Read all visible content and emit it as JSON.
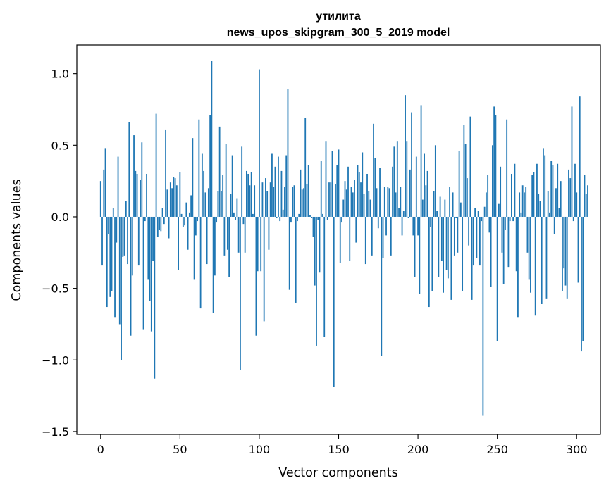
{
  "chart_data": {
    "type": "bar",
    "title_line1": "утилита",
    "title_line2": "news_upos_skipgram_300_5_2019 model",
    "xlabel": "Vector components",
    "ylabel": "Components values",
    "xlim": [
      -15,
      315
    ],
    "ylim": [
      -1.52,
      1.2
    ],
    "xticks": [
      0,
      50,
      100,
      150,
      200,
      250,
      300
    ],
    "xtick_labels": [
      "0",
      "50",
      "100",
      "150",
      "200",
      "250",
      "300"
    ],
    "yticks": [
      -1.5,
      -1.0,
      -0.5,
      0.0,
      0.5,
      1.0
    ],
    "ytick_labels": [
      "−1.5",
      "−1.0",
      "−0.5",
      "0.0",
      "0.5",
      "1.0"
    ],
    "bar_color": "#1f77b4",
    "x_start": 0,
    "values": [
      0.25,
      -0.34,
      0.33,
      0.48,
      -0.63,
      -0.12,
      -0.56,
      -0.52,
      0.06,
      -0.7,
      -0.18,
      0.42,
      -0.75,
      -1.0,
      -0.28,
      -0.27,
      0.11,
      -0.33,
      0.66,
      -0.83,
      -0.41,
      0.57,
      0.32,
      0.3,
      -0.34,
      0.26,
      0.52,
      -0.79,
      -0.03,
      0.3,
      -0.44,
      -0.59,
      -0.8,
      -0.31,
      -1.13,
      0.72,
      -0.14,
      -0.09,
      -0.1,
      0.06,
      -0.05,
      0.61,
      0.19,
      -0.15,
      0.24,
      0.2,
      0.28,
      0.27,
      0.22,
      -0.37,
      0.31,
      0.02,
      -0.07,
      -0.06,
      0.1,
      -0.23,
      0.03,
      0.15,
      0.55,
      -0.44,
      -0.13,
      -0.03,
      0.68,
      -0.64,
      0.44,
      0.32,
      0.17,
      -0.33,
      0.2,
      0.71,
      1.09,
      -0.67,
      -0.41,
      -0.04,
      0.18,
      0.63,
      0.18,
      0.29,
      -0.27,
      0.51,
      -0.23,
      -0.42,
      0.16,
      0.43,
      0.03,
      -0.02,
      0.13,
      -0.25,
      -1.07,
      0.49,
      -0.05,
      -0.25,
      0.32,
      0.3,
      0.22,
      0.31,
      0.02,
      0.22,
      -0.83,
      -0.38,
      1.03,
      -0.38,
      0.24,
      -0.73,
      0.27,
      0.18,
      -0.23,
      0.24,
      0.44,
      0.21,
      0.35,
      -0.01,
      0.42,
      -0.03,
      0.32,
      0.05,
      0.21,
      0.43,
      0.89,
      -0.51,
      -0.04,
      0.21,
      0.22,
      -0.6,
      -0.03,
      0.02,
      0.33,
      0.19,
      0.2,
      0.69,
      0.23,
      0.36,
      0.01,
      -0.01,
      -0.14,
      -0.48,
      -0.9,
      -0.02,
      -0.39,
      0.39,
      0.02,
      -0.84,
      0.53,
      -0.02,
      0.24,
      0.24,
      0.46,
      -1.19,
      0.23,
      0.36,
      0.47,
      -0.32,
      -0.04,
      0.12,
      0.25,
      0.19,
      0.35,
      -0.31,
      0.21,
      0.17,
      0.26,
      -0.18,
      0.36,
      0.31,
      0.24,
      0.45,
      0.16,
      -0.33,
      0.3,
      0.18,
      0.12,
      -0.27,
      0.65,
      0.41,
      0.2,
      -0.08,
      0.34,
      -0.97,
      -0.29,
      0.21,
      -0.13,
      0.21,
      0.2,
      -0.27,
      0.35,
      0.49,
      0.17,
      0.53,
      0.06,
      0.21,
      -0.13,
      0.04,
      0.85,
      0.53,
      -0.01,
      0.33,
      0.73,
      -0.13,
      -0.42,
      0.42,
      -0.13,
      -0.54,
      0.78,
      0.12,
      0.44,
      0.22,
      0.32,
      -0.63,
      -0.07,
      -0.52,
      0.18,
      0.5,
      0.04,
      -0.42,
      0.14,
      -0.31,
      -0.53,
      0.12,
      -0.37,
      -0.43,
      0.21,
      -0.58,
      0.17,
      -0.27,
      -0.01,
      -0.25,
      0.46,
      0.1,
      -0.52,
      0.64,
      0.51,
      0.27,
      -0.2,
      0.7,
      -0.58,
      -0.34,
      0.06,
      -0.29,
      0.04,
      -0.34,
      -0.03,
      -1.39,
      0.07,
      0.17,
      0.29,
      -0.11,
      -0.49,
      0.5,
      0.77,
      0.71,
      -0.87,
      0.09,
      0.35,
      -0.25,
      -0.47,
      -0.09,
      0.68,
      -0.35,
      -0.03,
      0.3,
      -0.03,
      0.37,
      -0.38,
      -0.7,
      0.17,
      0.03,
      0.22,
      0.17,
      0.21,
      -0.25,
      -0.44,
      -0.53,
      0.29,
      0.31,
      -0.69,
      0.37,
      0.16,
      0.11,
      -0.61,
      0.48,
      0.43,
      -0.57,
      0.18,
      0.03,
      0.39,
      0.36,
      -0.12,
      0.2,
      0.37,
      0.06,
      0.25,
      -0.52,
      -0.36,
      -0.48,
      -0.57,
      0.33,
      0.27,
      0.77,
      -0.03,
      0.37,
      0.17,
      -0.46,
      0.84,
      -0.94,
      -0.87,
      0.29,
      0.16,
      0.22
    ]
  }
}
